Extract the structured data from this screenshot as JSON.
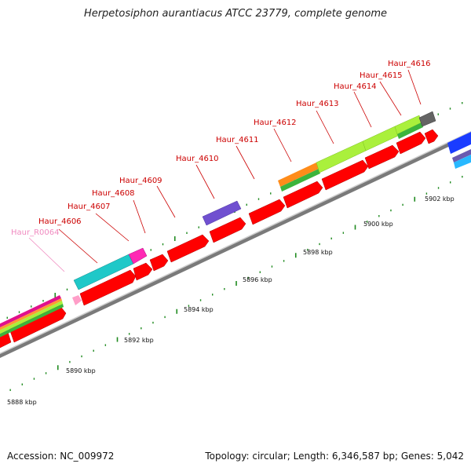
{
  "header": {
    "title": "Herpetosiphon aurantiacus ATCC 23779, complete genome"
  },
  "footer": {
    "accession": "Accession: NC_009972",
    "summary": "Topology: circular; Length: 6,346,587 bp; Genes: 5,042"
  },
  "colors": {
    "gene": "#ff0000",
    "label": "#cc0000",
    "rna_label": "#f08ac0",
    "backbone": "#7a7a7a",
    "tick": "#1f8a1f"
  },
  "genes": [
    {
      "id": "Haur_R0064",
      "type": "rna"
    },
    {
      "id": "Haur_4606",
      "type": "cds"
    },
    {
      "id": "Haur_4607",
      "type": "cds"
    },
    {
      "id": "Haur_4608",
      "type": "cds"
    },
    {
      "id": "Haur_4609",
      "type": "cds"
    },
    {
      "id": "Haur_4610",
      "type": "cds"
    },
    {
      "id": "Haur_4611",
      "type": "cds"
    },
    {
      "id": "Haur_4612",
      "type": "cds"
    },
    {
      "id": "Haur_4613",
      "type": "cds"
    },
    {
      "id": "Haur_4614",
      "type": "cds"
    },
    {
      "id": "Haur_4615",
      "type": "cds"
    },
    {
      "id": "Haur_4616",
      "type": "cds"
    }
  ],
  "scale": {
    "unit": "kbp",
    "labels": [
      "5888 kbp",
      "5890 kbp",
      "5892 kbp",
      "5894 kbp",
      "5896 kbp",
      "5898 kbp",
      "5900 kbp",
      "5902 kbp"
    ]
  }
}
